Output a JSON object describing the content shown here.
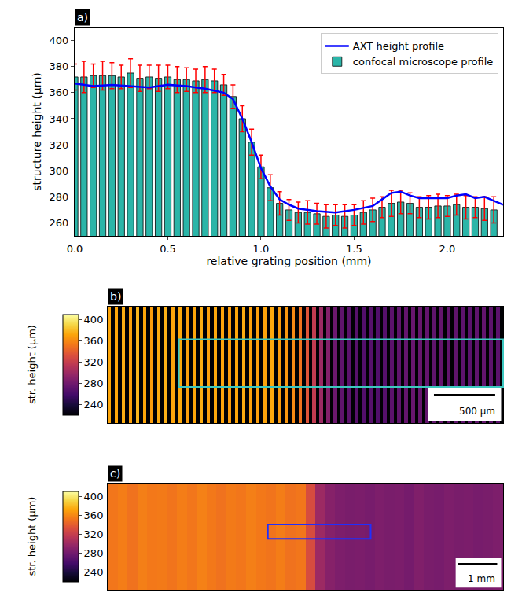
{
  "chart_data": [
    {
      "type": "bar",
      "label": "a)",
      "xlabel": "relative grating position (mm)",
      "ylabel": "structure height (μm)",
      "x": [
        0,
        0.05,
        0.1,
        0.15,
        0.2,
        0.25,
        0.3,
        0.35,
        0.4,
        0.45,
        0.5,
        0.55,
        0.6,
        0.65,
        0.7,
        0.75,
        0.8,
        0.85,
        0.9,
        0.95,
        1.0,
        1.05,
        1.1,
        1.15,
        1.2,
        1.25,
        1.3,
        1.35,
        1.4,
        1.45,
        1.5,
        1.55,
        1.6,
        1.65,
        1.7,
        1.75,
        1.8,
        1.85,
        1.9,
        1.95,
        2.0,
        2.05,
        2.1,
        2.15,
        2.2,
        2.25
      ],
      "series": [
        {
          "name": "confocal microscope profile",
          "type": "bar",
          "color": "#2bb5a8",
          "values": [
            372,
            372,
            373,
            373,
            373,
            372,
            375,
            371,
            372,
            371,
            372,
            370,
            370,
            369,
            370,
            369,
            366,
            357,
            340,
            322,
            303,
            287,
            275,
            270,
            268,
            268,
            267,
            265,
            266,
            265,
            266,
            268,
            270,
            272,
            275,
            276,
            275,
            272,
            272,
            273,
            273,
            274,
            272,
            272,
            271,
            270
          ],
          "errors": [
            10,
            12,
            9,
            11,
            10,
            9,
            11,
            10,
            9,
            10,
            9,
            10,
            9,
            9,
            10,
            9,
            8,
            9,
            10,
            10,
            9,
            10,
            9,
            8,
            8,
            9,
            8,
            9,
            8,
            9,
            8,
            9,
            9,
            8,
            10,
            9,
            8,
            8,
            9,
            9,
            8,
            8,
            9,
            8,
            9,
            10
          ]
        },
        {
          "name": "AXT height profile",
          "type": "line",
          "color": "#0000ff",
          "x": [
            0,
            0.1,
            0.2,
            0.3,
            0.4,
            0.5,
            0.6,
            0.7,
            0.8,
            0.85,
            0.9,
            0.95,
            1.0,
            1.05,
            1.1,
            1.15,
            1.2,
            1.3,
            1.4,
            1.5,
            1.6,
            1.65,
            1.7,
            1.75,
            1.8,
            1.85,
            1.9,
            2.0,
            2.05,
            2.1,
            2.15,
            2.2,
            2.25,
            2.3
          ],
          "values": [
            367,
            365,
            366,
            365,
            364,
            366,
            365,
            363,
            360,
            355,
            340,
            322,
            302,
            288,
            278,
            274,
            271,
            269,
            268,
            270,
            273,
            278,
            283,
            284,
            281,
            279,
            279,
            279,
            281,
            282,
            279,
            280,
            277,
            274
          ]
        }
      ],
      "xlim": [
        0,
        2.3
      ],
      "ylim": [
        250,
        410
      ],
      "xticks": [
        {
          "value": 0,
          "label": "0.0"
        },
        0.5,
        {
          "value": 1,
          "label": "1.0"
        },
        1.5,
        {
          "value": 2,
          "label": "2.0"
        }
      ],
      "yticks": [
        260,
        280,
        300,
        320,
        340,
        360,
        380,
        400
      ],
      "legend": "upper right",
      "grid": false
    },
    {
      "type": "heatmap",
      "label": "b)",
      "colorbar_title": "str. height (μm)",
      "scale_bar": "500 μm",
      "color": "inferno",
      "zlim": [
        220,
        410
      ],
      "zticks": [
        240,
        280,
        320,
        360,
        400
      ],
      "tick_labels": false,
      "cells": [
        [
          372,
          215,
          372,
          215,
          375,
          215,
          370,
          215,
          378,
          215,
          372,
          215,
          368,
          215,
          374,
          215,
          376,
          215,
          371,
          215,
          373,
          215,
          369,
          215,
          372,
          215,
          375,
          215,
          370,
          215,
          373,
          215,
          371,
          215,
          368,
          215,
          372,
          215,
          374,
          215,
          370,
          215,
          369,
          215,
          371,
          215,
          373,
          215,
          368,
          215,
          366,
          215,
          360,
          215,
          350,
          215,
          335,
          215,
          318,
          215,
          300,
          215,
          288,
          215,
          278,
          215,
          272,
          215,
          270,
          215,
          268,
          215,
          266,
          215,
          268,
          215,
          265,
          215,
          267,
          215,
          270,
          215,
          272,
          215,
          274,
          215,
          276,
          215,
          275,
          215,
          273,
          215,
          272,
          215,
          274,
          215,
          273,
          215,
          272,
          215,
          271,
          215,
          270,
          215,
          272,
          215,
          273,
          215,
          271,
          215,
          270,
          215
        ]
      ]
    },
    {
      "type": "heatmap",
      "label": "c)",
      "colorbar_title": "str. height (μm)",
      "scale_bar": "1 mm",
      "color": "inferno",
      "zlim": [
        220,
        410
      ],
      "zticks": [
        240,
        280,
        320,
        360,
        400
      ],
      "tick_labels": false,
      "cells": [
        [
          352,
          355,
          350,
          356,
          353,
          354,
          351,
          355,
          352,
          357,
          353,
          350,
          354,
          352,
          356,
          353,
          351,
          355,
          350,
          352,
          330,
          300,
          290,
          286,
          284,
          285,
          283,
          286,
          284,
          285,
          282,
          287,
          284,
          283,
          286,
          284,
          285,
          283,
          284,
          286
        ]
      ]
    }
  ]
}
